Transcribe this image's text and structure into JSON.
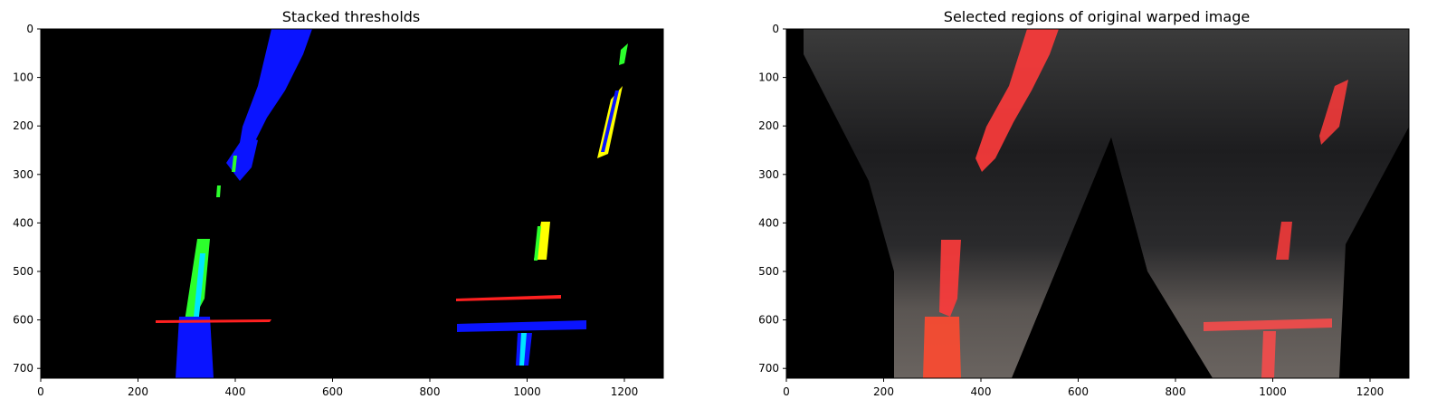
{
  "figure": {
    "panels": [
      {
        "title": "Stacked thresholds",
        "x_ticks": [
          "0",
          "200",
          "400",
          "600",
          "800",
          "1000",
          "1200"
        ],
        "y_ticks": [
          "0",
          "100",
          "200",
          "300",
          "400",
          "500",
          "600",
          "700"
        ]
      },
      {
        "title": "Selected regions of original warped image",
        "x_ticks": [
          "0",
          "200",
          "400",
          "600",
          "800",
          "1000",
          "1200"
        ],
        "y_ticks": [
          "0",
          "100",
          "200",
          "300",
          "400",
          "500",
          "600",
          "700"
        ]
      }
    ],
    "colors": {
      "lane_blue": "#0a14ff",
      "lane_green": "#2cff2c",
      "lane_yellow": "#ffff00",
      "lane_red": "#ff2020",
      "overlay_red": "#ff3b3b",
      "road_dark": "#2a2a2a"
    }
  }
}
